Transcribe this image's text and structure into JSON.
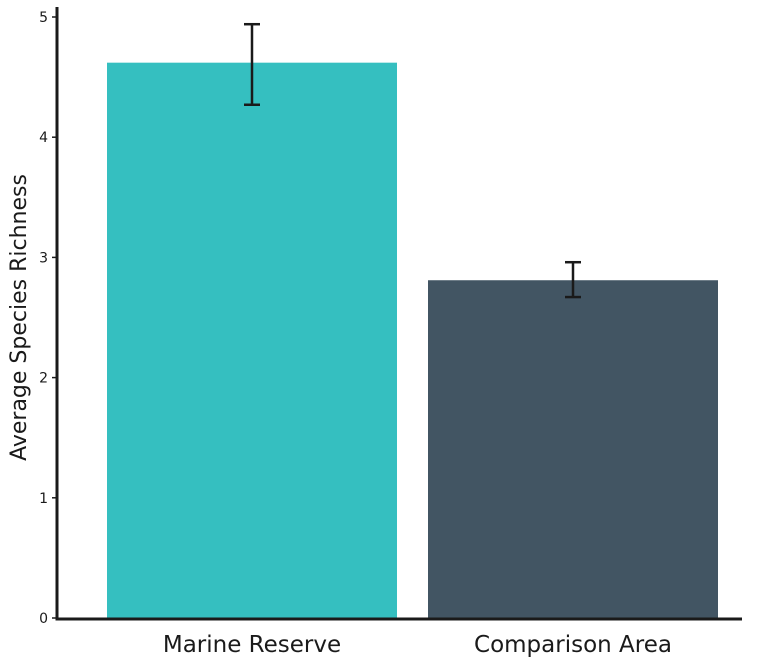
{
  "chart_data": {
    "type": "bar",
    "title": "",
    "xlabel": "",
    "ylabel": "Average Species Richness",
    "categories": [
      "Marine Reserve",
      "Comparison Area"
    ],
    "values": [
      4.62,
      2.81
    ],
    "error_low": [
      4.27,
      2.67
    ],
    "error_high": [
      4.94,
      2.96
    ],
    "ylim": [
      0,
      5
    ],
    "yticks": [
      0,
      1,
      2,
      3,
      4,
      5
    ],
    "ytick_labels": [
      "0",
      "1",
      "2",
      "3",
      "4",
      "5"
    ],
    "grid": false,
    "legend": "none",
    "colors": [
      "#35bfc0",
      "#425563"
    ],
    "axis_color": "#1a1a1a",
    "error_bar_color": "#1a1a1a"
  }
}
